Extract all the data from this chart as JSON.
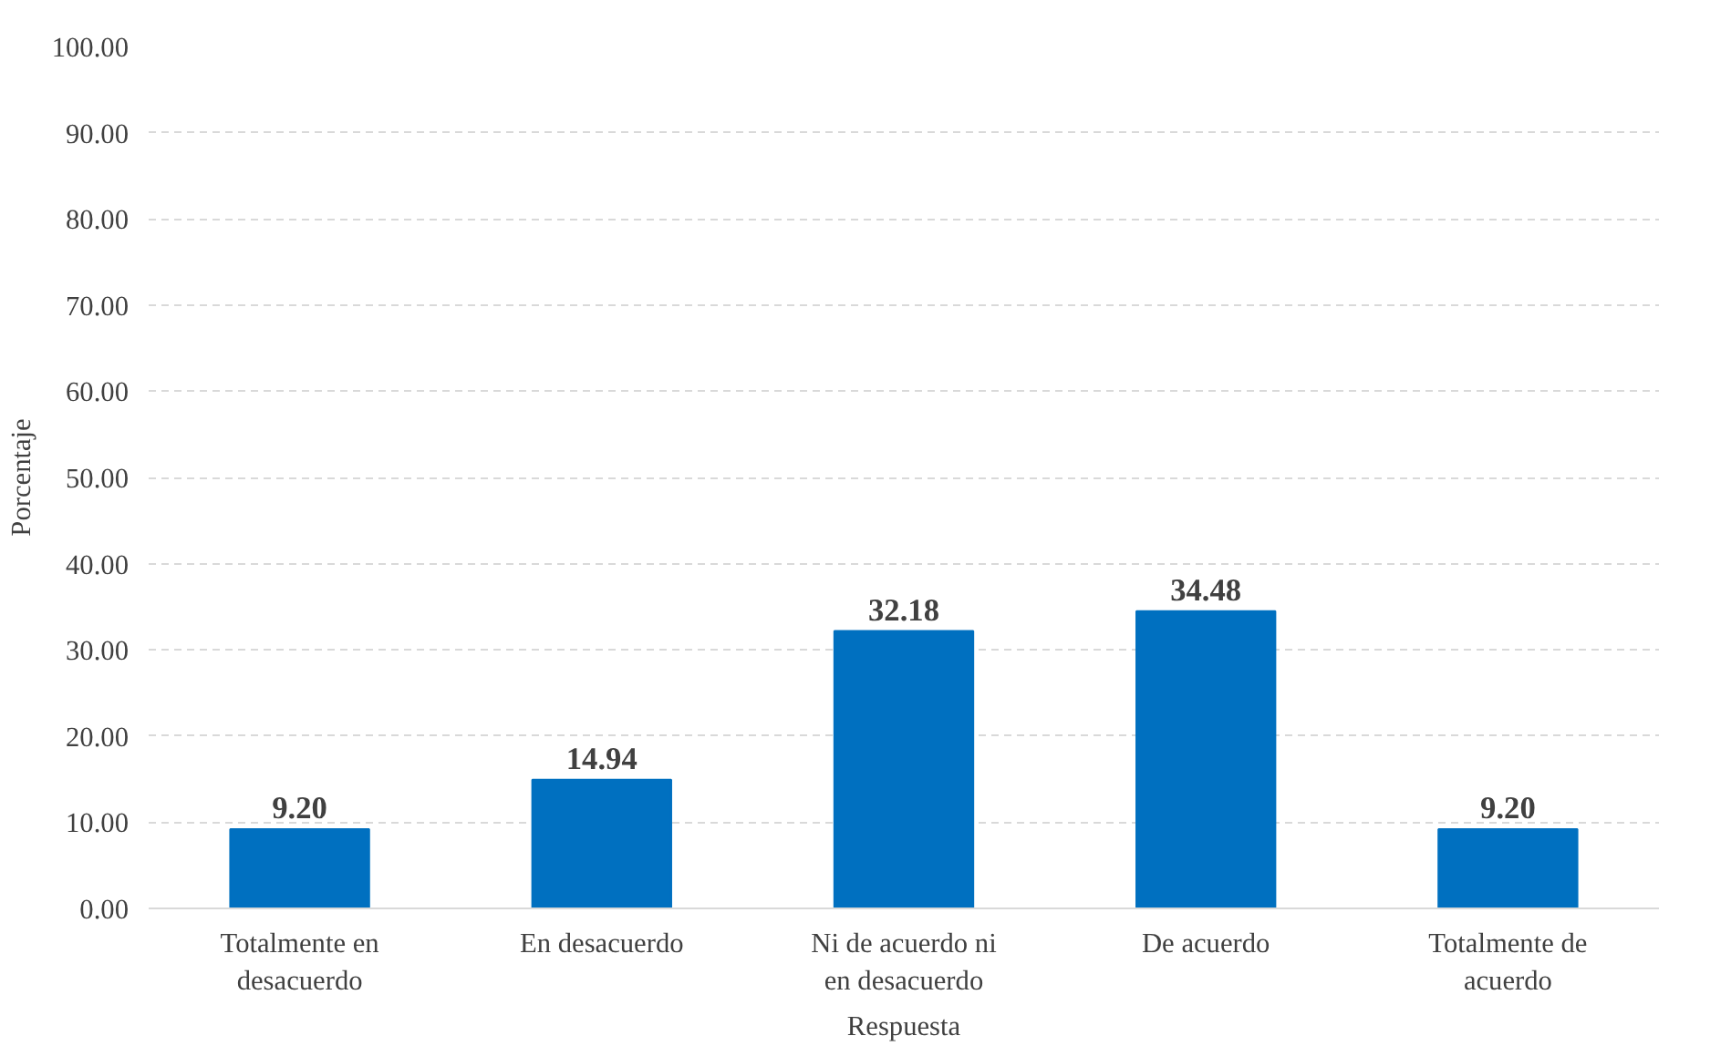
{
  "chart_data": {
    "type": "bar",
    "xlabel": "Respuesta",
    "ylabel": "Porcentaje",
    "categories": [
      "Totalmente en desacuerdo",
      "En desacuerdo",
      "Ni de acuerdo ni en desacuerdo",
      "De acuerdo",
      "Totalmente de acuerdo"
    ],
    "values": [
      9.2,
      14.94,
      32.18,
      34.48,
      9.2
    ],
    "value_labels": [
      "9.20",
      "14.94",
      "32.18",
      "34.48",
      "9.20"
    ],
    "color": "#0070c0",
    "ylim": [
      0,
      100
    ],
    "yticks": [
      {
        "value": 0,
        "label": "0.00"
      },
      {
        "value": 10,
        "label": "10.00"
      },
      {
        "value": 20,
        "label": "20.00"
      },
      {
        "value": 30,
        "label": "30.00"
      },
      {
        "value": 40,
        "label": "40.00"
      },
      {
        "value": 50,
        "label": "50.00"
      },
      {
        "value": 60,
        "label": "60.00"
      },
      {
        "value": 70,
        "label": "70.00"
      },
      {
        "value": 80,
        "label": "80.00"
      },
      {
        "value": 90,
        "label": "90.00"
      },
      {
        "value": 100,
        "label": "100.00"
      }
    ],
    "grid": "y"
  }
}
